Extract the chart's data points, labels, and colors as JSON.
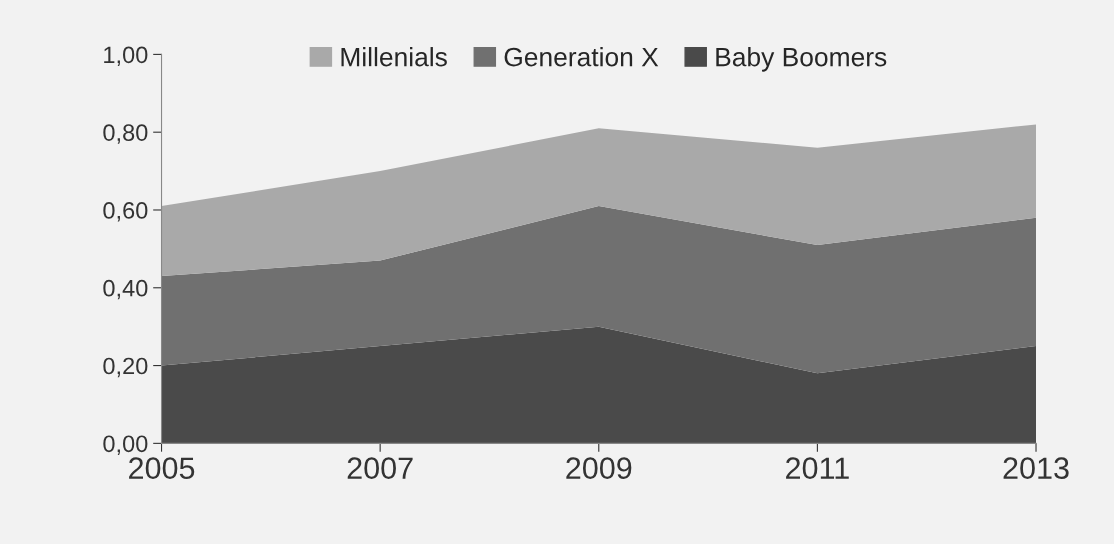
{
  "chart_data": {
    "type": "area",
    "stacked": true,
    "x": [
      2005,
      2007,
      2009,
      2011,
      2013
    ],
    "series": [
      {
        "name": "Baby Boomers",
        "color": "#4a4a4a",
        "values": [
          0.2,
          0.25,
          0.3,
          0.18,
          0.25
        ]
      },
      {
        "name": "Generation X",
        "color": "#707070",
        "values": [
          0.23,
          0.22,
          0.31,
          0.33,
          0.33
        ]
      },
      {
        "name": "Millenials",
        "color": "#a9a9a9",
        "values": [
          0.18,
          0.23,
          0.2,
          0.25,
          0.24
        ]
      }
    ],
    "xlim": [
      2005,
      2013
    ],
    "xticks": [
      2005,
      2007,
      2009,
      2011,
      2013
    ],
    "ylim": [
      0,
      1
    ],
    "yticks": [
      {
        "value": 0,
        "label": "0,00"
      },
      {
        "value": 0.2,
        "label": "0,20"
      },
      {
        "value": 0.4,
        "label": "0,40"
      },
      {
        "value": 0.6,
        "label": "0,60"
      },
      {
        "value": 0.8,
        "label": "0,80"
      },
      {
        "value": 1,
        "label": "1,00"
      }
    ],
    "grid": false,
    "legend": "top"
  }
}
